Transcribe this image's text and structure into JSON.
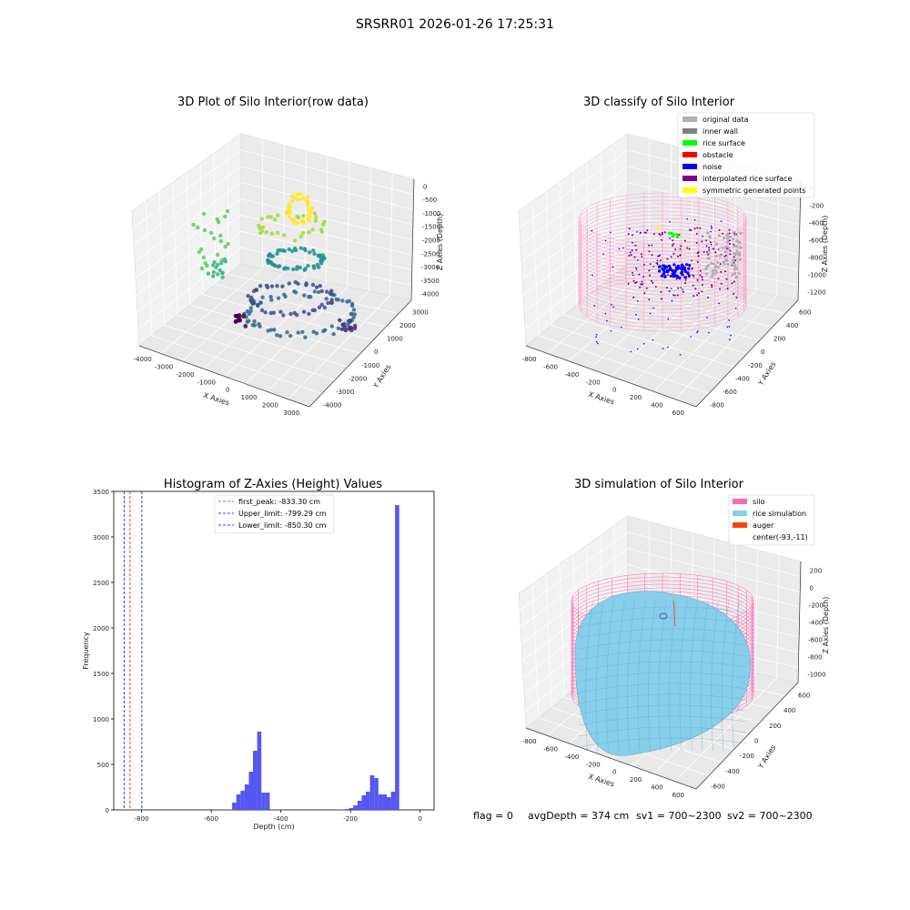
{
  "figure_title": "SRSRR01 2026-01-26 17:25:31",
  "footer": {
    "flag": "flag = 0",
    "avg_depth": "avgDepth = 374 cm",
    "sv1": "sv1 = 700~2300",
    "sv2": "sv2 = 700~2300"
  },
  "colors": {
    "original": "#b0b0b0",
    "inner_wall": "#808080",
    "rice_surface": "#00ff00",
    "obstacle": "#ff0000",
    "noise": "#0000ff",
    "interp": "#800080",
    "sym": "#ffff00",
    "silo": "#ff69b4",
    "rice_sim": "#87ceeb",
    "auger": "#ff4500",
    "hist_bar": "#4d4df2"
  },
  "chart_data": [
    {
      "type": "scatter",
      "title": "3D Plot of Silo Interior(row data)",
      "xlabel": "X Axies",
      "ylabel": "Y Axies",
      "zlabel": "Z Axies (Depth)",
      "x_ticks": [
        "-4000",
        "-3000",
        "-2000",
        "-1000",
        "0",
        "1000",
        "2000",
        "3000"
      ],
      "y_ticks": [
        "3000",
        "2000",
        "1000",
        "0",
        "-1000",
        "-2000",
        "-3000",
        "-4000"
      ],
      "z_ticks": [
        "0",
        "-500",
        "-1000",
        "-1500",
        "-2000",
        "-2500",
        "-3000",
        "-3500",
        "-4000"
      ],
      "colormap": "viridis"
    },
    {
      "type": "scatter",
      "title": "3D classify of Silo Interior",
      "xlabel": "X Axies",
      "ylabel": "Y Axies",
      "zlabel": "Z Axies (Depth)",
      "x_ticks": [
        "-800",
        "-600",
        "-400",
        "-200",
        "0",
        "200",
        "400",
        "600"
      ],
      "y_ticks": [
        "600",
        "400",
        "200",
        "0",
        "-200",
        "-400",
        "-600",
        "-800"
      ],
      "z_ticks": [
        "0",
        "-200",
        "-400",
        "-600",
        "-800",
        "-1000",
        "-1200"
      ],
      "legend": [
        "original data",
        "inner wall",
        "rice surface",
        "obstacle",
        "noise",
        "interpolated rice surface",
        "symmetric generated points"
      ],
      "legend_position": "top-right"
    },
    {
      "type": "bar",
      "title": "Histogram of Z-Axies (Height) Values",
      "xlabel": "Depth (cm)",
      "ylabel": "Frequency",
      "xlim": [
        -880,
        40
      ],
      "ylim": [
        0,
        3500
      ],
      "x_ticks": [
        -800,
        -600,
        -400,
        -200,
        0
      ],
      "y_ticks": [
        0,
        500,
        1000,
        1500,
        2000,
        2500,
        3000,
        3500
      ],
      "bin_width": 12,
      "bins": [
        [
          -552,
          5
        ],
        [
          -540,
          80
        ],
        [
          -528,
          170
        ],
        [
          -516,
          210
        ],
        [
          -504,
          280
        ],
        [
          -492,
          420
        ],
        [
          -480,
          650
        ],
        [
          -468,
          860
        ],
        [
          -456,
          190
        ],
        [
          -444,
          190
        ],
        [
          -228,
          5
        ],
        [
          -216,
          10
        ],
        [
          -204,
          20
        ],
        [
          -192,
          50
        ],
        [
          -180,
          100
        ],
        [
          -168,
          160
        ],
        [
          -156,
          200
        ],
        [
          -144,
          380
        ],
        [
          -132,
          350
        ],
        [
          -120,
          170
        ],
        [
          -108,
          170
        ],
        [
          -96,
          140
        ],
        [
          -84,
          200
        ],
        [
          -72,
          3350
        ]
      ],
      "vlines": [
        {
          "label": "first_peak: -833.30 cm",
          "value": -833.3,
          "color": "#ff0000"
        },
        {
          "label": "Upper_limit: -799.29 cm",
          "value": -799.29,
          "color": "#0000ff"
        },
        {
          "label": "Lower_limit: -850.30 cm",
          "value": -850.3,
          "color": "#0000ff"
        }
      ],
      "legend_position": "top-center"
    },
    {
      "type": "surface",
      "title": "3D simulation of Silo Interior",
      "xlabel": "X Axies",
      "ylabel": "Y Axies",
      "zlabel": "Z Axies (Depth)",
      "x_ticks": [
        "-800",
        "-600",
        "-400",
        "-200",
        "0",
        "200",
        "400",
        "600"
      ],
      "y_ticks": [
        "600",
        "400",
        "200",
        "0",
        "-200",
        "-400",
        "-600"
      ],
      "z_ticks": [
        "200",
        "0",
        "-200",
        "-400",
        "-600",
        "-800",
        "-1000"
      ],
      "legend": [
        "silo",
        "rice simulation",
        "auger",
        "center(-93,-11)"
      ],
      "legend_position": "top-right"
    }
  ]
}
